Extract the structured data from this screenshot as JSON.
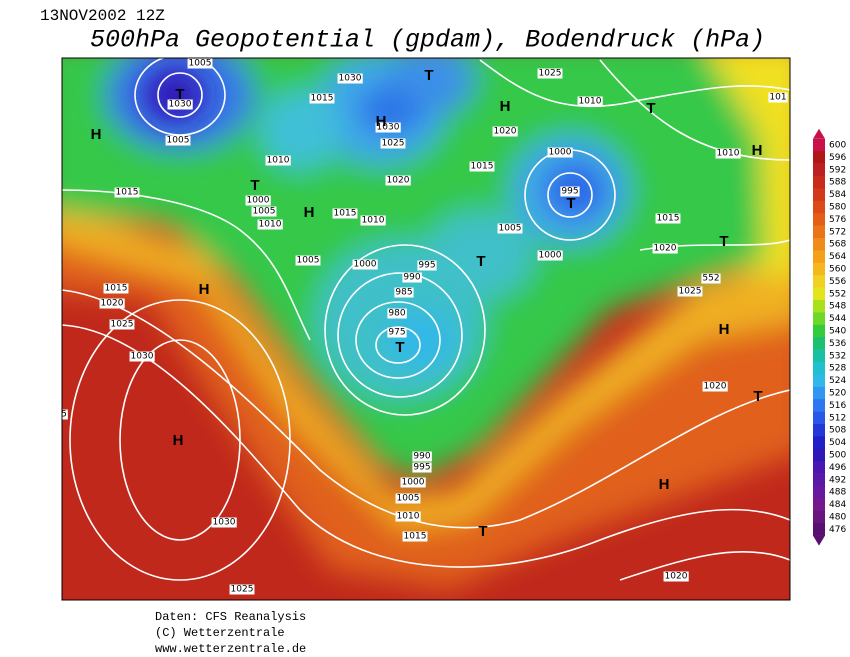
{
  "header": {
    "date": "13NOV2002 12Z",
    "title": "500hPa Geopotential (gpdam), Bodendruck (hPa)"
  },
  "map": {
    "pressure_labels": [
      1005,
      1030,
      1005,
      1030,
      1015,
      1030,
      1025,
      1010,
      1020,
      1000,
      1005,
      1010,
      1015,
      1010,
      1015,
      1025,
      1010,
      1020,
      1015,
      1000,
      995,
      1010,
      1015,
      1020,
      101,
      1005,
      1000,
      1005,
      1000,
      995,
      990,
      985,
      980,
      975,
      1015,
      1020,
      1025,
      1030,
      552,
      1025,
      1020,
      5,
      990,
      995,
      1000,
      1005,
      1010,
      1015,
      1030,
      1025,
      1020
    ],
    "centers": [
      "T",
      "H",
      "T",
      "H",
      "H",
      "T",
      "H",
      "T",
      "H",
      "T",
      "T",
      "H",
      "T",
      "H",
      "T",
      "T",
      "H",
      "H",
      "T"
    ]
  },
  "colorbar": {
    "ticks": [
      600,
      596,
      592,
      588,
      584,
      580,
      576,
      572,
      568,
      564,
      560,
      556,
      552,
      548,
      544,
      540,
      536,
      532,
      528,
      524,
      520,
      516,
      512,
      508,
      504,
      500,
      496,
      492,
      488,
      484,
      480,
      476
    ],
    "colors": [
      "#c8104a",
      "#b01818",
      "#bc2020",
      "#c82a1c",
      "#d4381a",
      "#dc4a18",
      "#e45e18",
      "#ec7418",
      "#f08a18",
      "#f4a018",
      "#f4b81c",
      "#f0d020",
      "#e4e41c",
      "#a8e01c",
      "#6cd828",
      "#34cc3c",
      "#1cc070",
      "#18c0a4",
      "#20c0d0",
      "#30b8e8",
      "#3098f0",
      "#2c78f0",
      "#2858e8",
      "#2438d8",
      "#2020c8",
      "#3018b8",
      "#4818b0",
      "#5a18a8",
      "#6818a0",
      "#741890",
      "#6a1480",
      "#5a1070"
    ]
  },
  "footer": {
    "lines": [
      "Daten: CFS Reanalysis",
      "(C) Wetterzentrale",
      "www.wetterzentrale.de"
    ]
  }
}
